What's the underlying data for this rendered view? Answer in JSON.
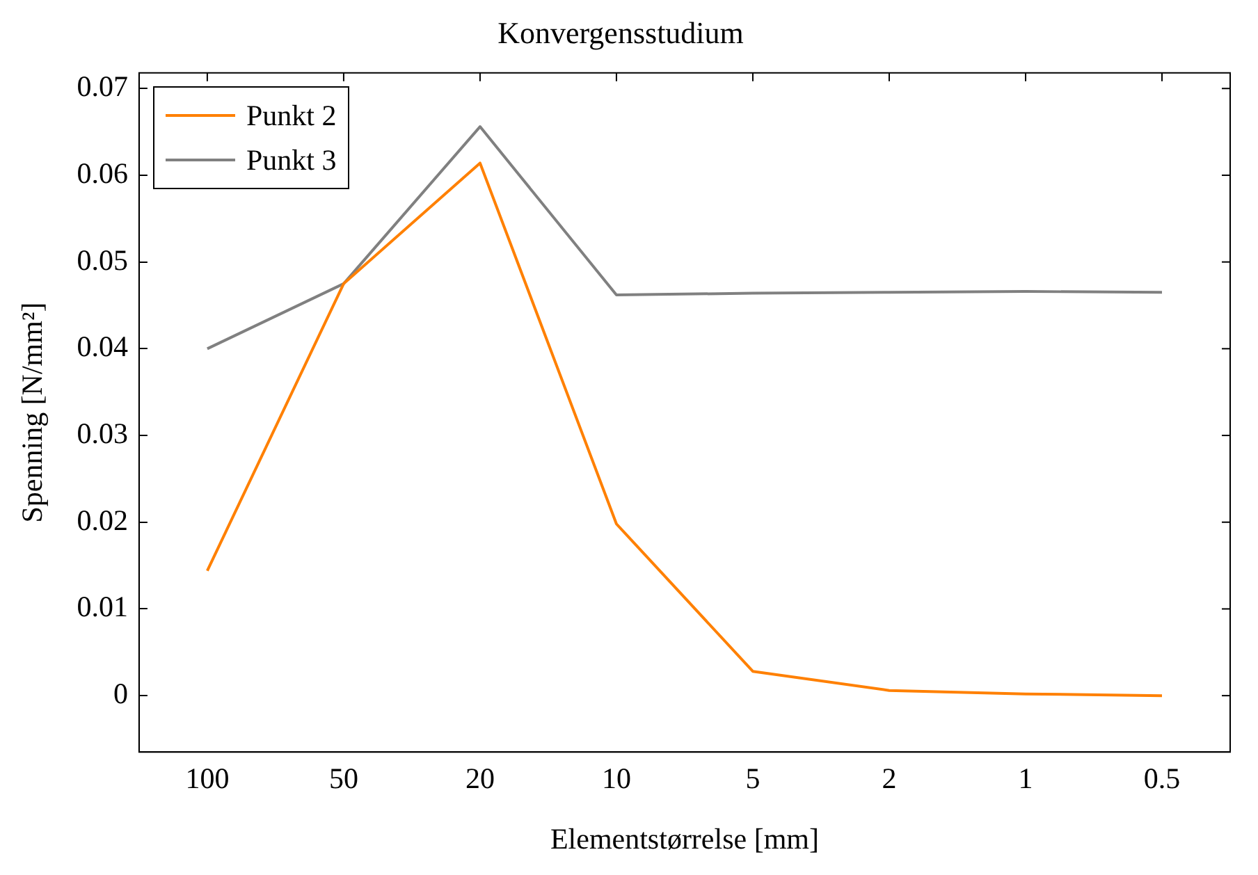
{
  "chart_data": {
    "type": "line",
    "title": "Konvergensstudium",
    "xlabel": "Elementstørrelse [mm]",
    "ylabel": "Spenning [N/mm²]",
    "categories": [
      "100",
      "50",
      "20",
      "10",
      "5",
      "2",
      "1",
      "0.5"
    ],
    "series": [
      {
        "name": "Punkt 2",
        "color": "#ff8000",
        "values": [
          0.0144,
          0.0475,
          0.0614,
          0.0198,
          0.0028,
          0.0006,
          0.0002,
          0.0
        ]
      },
      {
        "name": "Punkt 3",
        "color": "#808080",
        "values": [
          0.04,
          0.0475,
          0.0656,
          0.0462,
          0.0464,
          0.0465,
          0.0466,
          0.0465
        ]
      }
    ],
    "ylim": [
      -0.0065,
      0.0718
    ],
    "yticks": [
      0,
      0.01,
      0.02,
      0.03,
      0.04,
      0.05,
      0.06,
      0.07
    ],
    "grid": false,
    "legend": "top left",
    "marker": "none",
    "line_style": "solid"
  }
}
